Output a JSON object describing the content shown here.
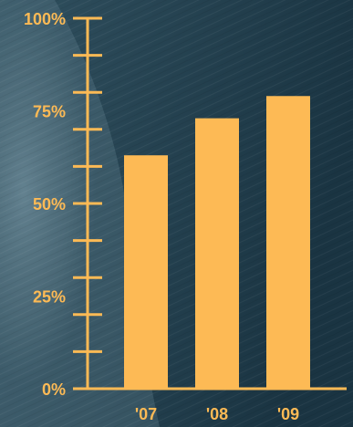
{
  "colors": {
    "background_dark": "#1b3544",
    "background_light": "#4b6a7a",
    "accent": "#fdba55"
  },
  "chart_data": {
    "type": "bar",
    "title": "",
    "xlabel": "",
    "ylabel": "",
    "categories": [
      "'07",
      "'08",
      "'09"
    ],
    "values": [
      63,
      73,
      79
    ],
    "ylim": [
      0,
      100
    ],
    "y_ticks": [
      {
        "value": 0,
        "label": "0%"
      },
      {
        "value": 25,
        "label": "25%"
      },
      {
        "value": 50,
        "label": "50%"
      },
      {
        "value": 75,
        "label": "75%"
      },
      {
        "value": 100,
        "label": "100%"
      }
    ],
    "minor_tick_step": 10,
    "grid": false,
    "legend": "none"
  }
}
